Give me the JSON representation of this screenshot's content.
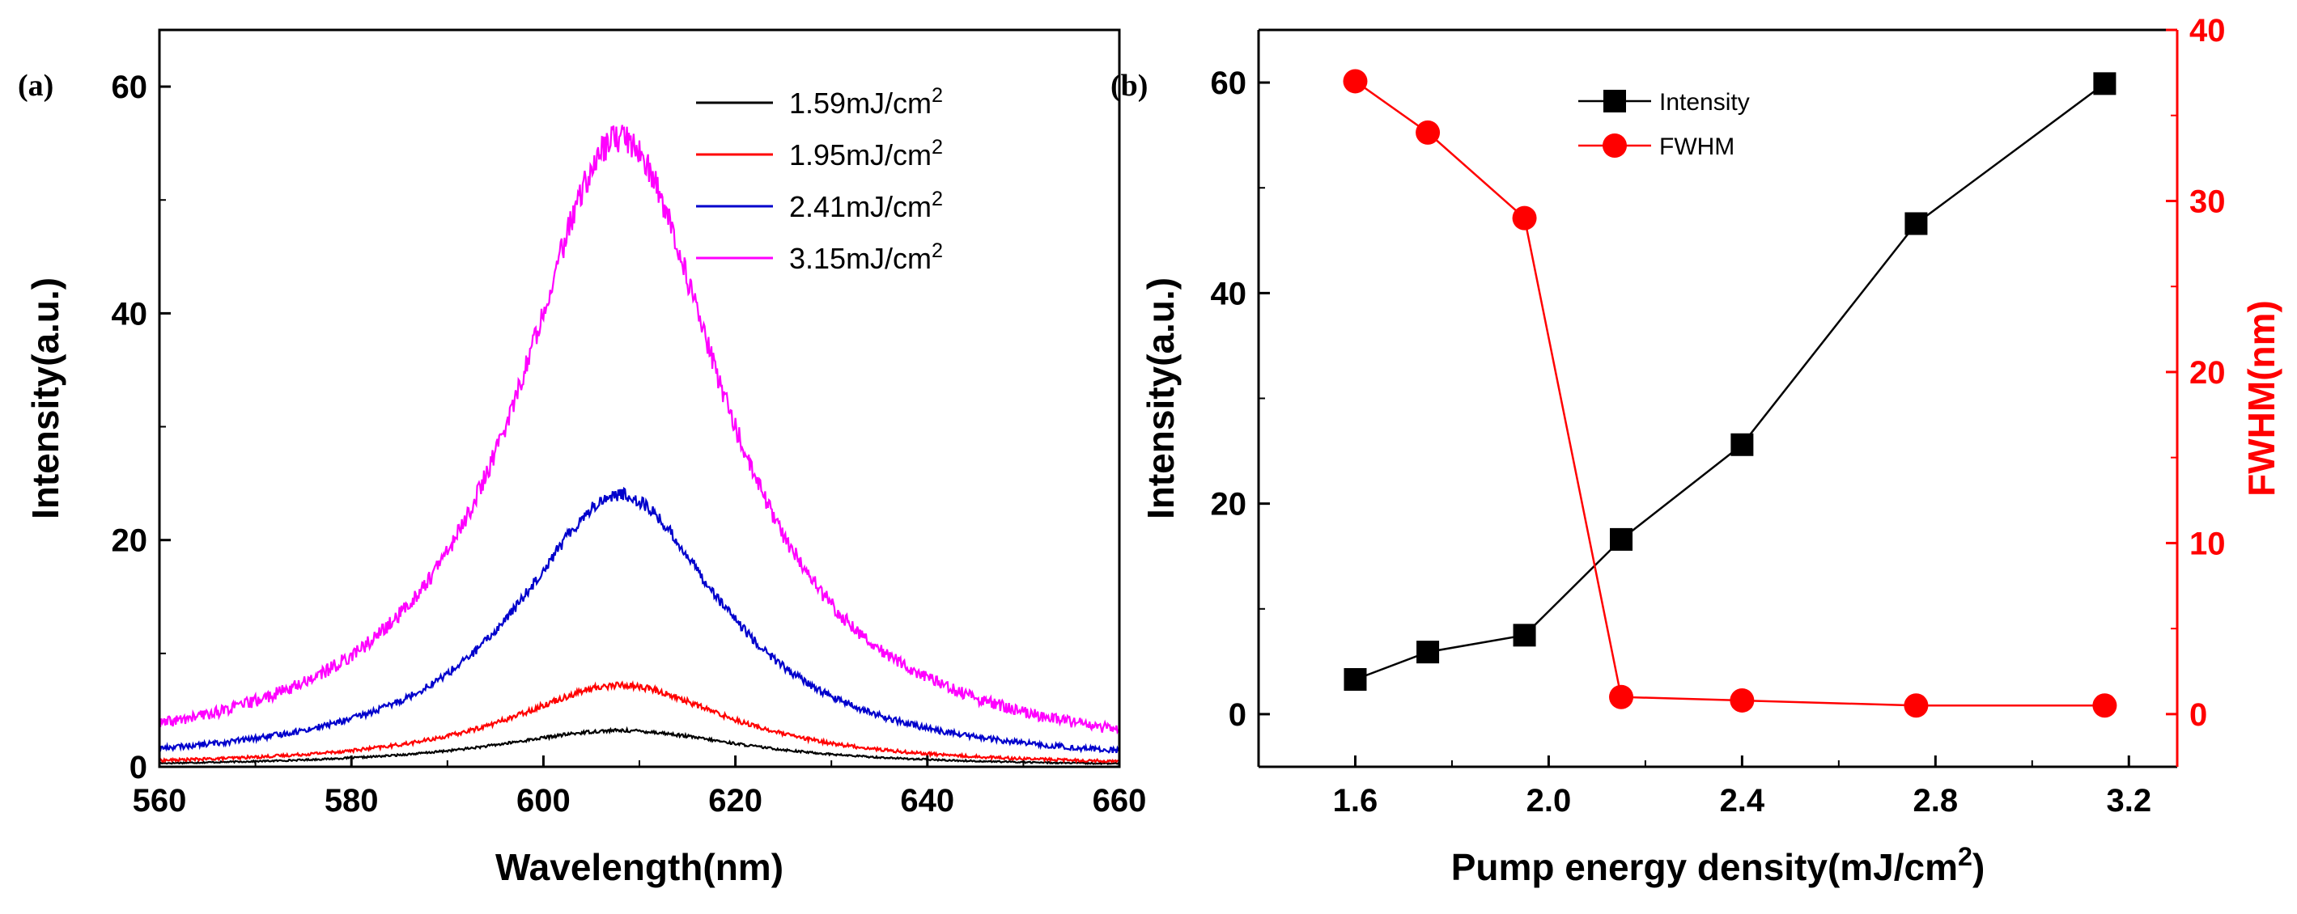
{
  "figure": {
    "panel_a_label": "(a)",
    "panel_b_label": "(b)"
  },
  "colors": {
    "series_a": [
      "#000000",
      "#ff0000",
      "#0000cc",
      "#ff00ff"
    ],
    "intensity": "#000000",
    "fwhm": "#ff0000"
  },
  "chart_data": [
    {
      "type": "line",
      "panel": "(a)",
      "xlabel": "Wavelength(nm)",
      "ylabel": "Intensity(a.u.)",
      "xlim": [
        560,
        660
      ],
      "ylim": [
        0,
        65
      ],
      "xticks": [
        560,
        580,
        600,
        620,
        640,
        660
      ],
      "yticks": [
        0,
        20,
        40,
        60
      ],
      "legend_position": "top-right",
      "peak_center_nm": 608,
      "series": [
        {
          "name": "1.59mJ/cm",
          "superscript": "2",
          "label": "1.59mJ/cm2",
          "peak": 3.2,
          "noise": 0.15,
          "width": 16
        },
        {
          "name": "1.95mJ/cm",
          "superscript": "2",
          "label": "1.95mJ/cm2",
          "peak": 7.2,
          "noise": 0.3,
          "width": 14
        },
        {
          "name": "2.41mJ/cm",
          "superscript": "2",
          "label": "2.41mJ/cm2",
          "peak": 24.0,
          "noise": 0.6,
          "width": 13
        },
        {
          "name": "3.15mJ/cm",
          "superscript": "2",
          "label": "3.15mJ/cm2",
          "peak": 55.5,
          "noise": 1.3,
          "width": 13
        }
      ]
    },
    {
      "type": "line",
      "panel": "(b)",
      "xlabel": "Pump energy density(mJ/cm",
      "xlabel_superscript": "2",
      "xlabel_end": ")",
      "ylabel": "Intensity(a.u.)",
      "y2label": "FWHM(nm)",
      "xlim": [
        1.4,
        3.3
      ],
      "ylim": [
        -5,
        65
      ],
      "y2lim": [
        -3.08,
        40
      ],
      "xticks": [
        "1.6",
        "2.0",
        "2.4",
        "2.8",
        "3.2"
      ],
      "yticks": [
        0,
        20,
        40,
        60
      ],
      "y2ticks": [
        0,
        10,
        20,
        30,
        40
      ],
      "legend_position": "top-center",
      "x": [
        1.6,
        1.75,
        1.95,
        2.15,
        2.4,
        2.76,
        3.15
      ],
      "series": [
        {
          "name": "Intensity",
          "axis": "left",
          "marker": "square",
          "values": [
            3.3,
            5.9,
            7.5,
            16.6,
            25.6,
            46.6,
            59.9
          ]
        },
        {
          "name": "FWHM",
          "axis": "right",
          "marker": "circle",
          "values": [
            37.0,
            34.0,
            29.0,
            1.0,
            0.8,
            0.5,
            0.5
          ]
        }
      ]
    }
  ]
}
